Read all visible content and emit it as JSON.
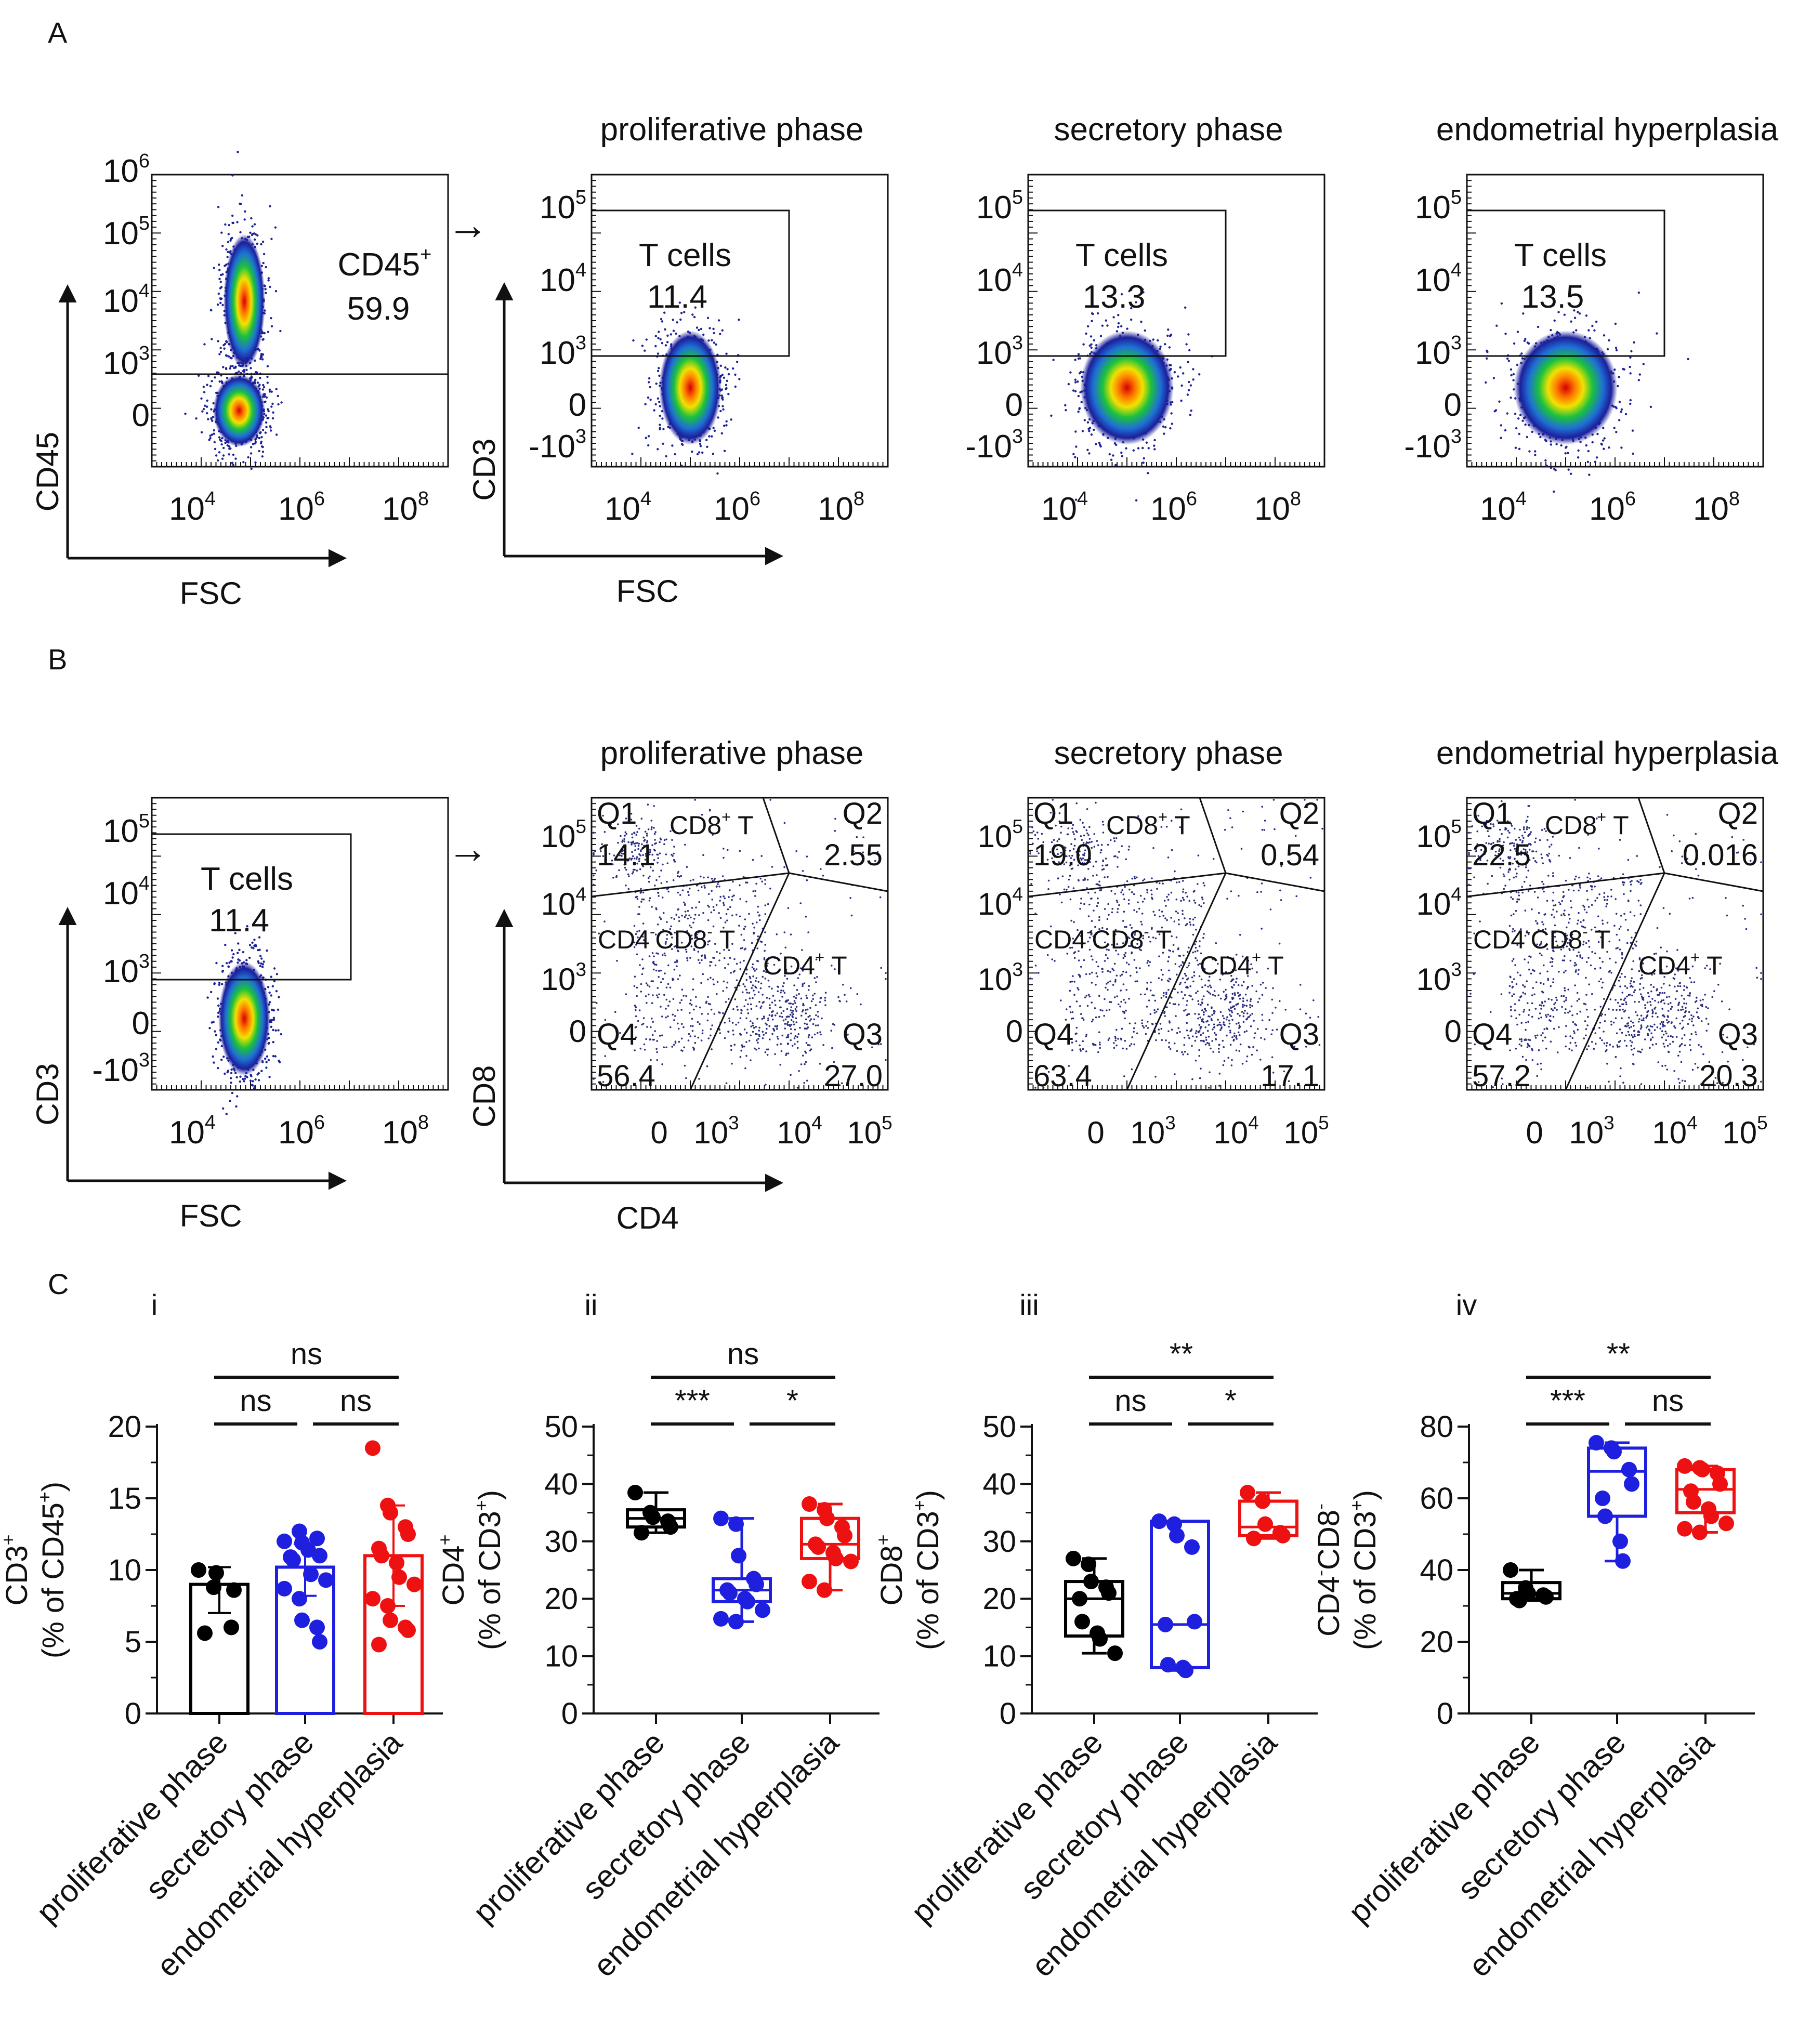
{
  "panels": {
    "a": "A",
    "b": "B",
    "c": "C"
  },
  "phase_titles": [
    "proliferative phase",
    "secretory phase",
    "endometrial hyperplasia"
  ],
  "flow_A": {
    "gate_plot": {
      "xlabel": "FSC",
      "ylabel": "CD45",
      "x_ticks": [
        {
          "base": "10",
          "exp": "4"
        },
        {
          "base": "10",
          "exp": "6"
        },
        {
          "base": "10",
          "exp": "8"
        }
      ],
      "y_ticks": [
        {
          "base": "10",
          "exp": "6"
        },
        {
          "base": "10",
          "exp": "5"
        },
        {
          "base": "10",
          "exp": "4"
        },
        {
          "base": "10",
          "exp": "3"
        },
        {
          "base": "0",
          "exp": ""
        }
      ],
      "gate_label": "CD45",
      "gate_sup": "+",
      "gate_value": "59.9"
    },
    "plots": [
      {
        "gate_label": "T cells",
        "gate_value": "11.4"
      },
      {
        "gate_label": "T cells",
        "gate_value": "13.3"
      },
      {
        "gate_label": "T cells",
        "gate_value": "13.5"
      }
    ],
    "xlabel": "FSC",
    "ylabel": "CD3",
    "x_ticks": [
      {
        "base": "10",
        "exp": "4"
      },
      {
        "base": "10",
        "exp": "6"
      },
      {
        "base": "10",
        "exp": "8"
      }
    ],
    "y_ticks": [
      {
        "base": "10",
        "exp": "5"
      },
      {
        "base": "10",
        "exp": "4"
      },
      {
        "base": "10",
        "exp": "3"
      },
      {
        "base": "0",
        "exp": ""
      },
      {
        "base": "-10",
        "exp": "3"
      }
    ]
  },
  "flow_B": {
    "gate_plot": {
      "xlabel": "FSC",
      "ylabel": "CD3",
      "x_ticks": [
        {
          "base": "10",
          "exp": "4"
        },
        {
          "base": "10",
          "exp": "6"
        },
        {
          "base": "10",
          "exp": "8"
        }
      ],
      "y_ticks": [
        {
          "base": "10",
          "exp": "5"
        },
        {
          "base": "10",
          "exp": "4"
        },
        {
          "base": "10",
          "exp": "3"
        },
        {
          "base": "0",
          "exp": ""
        },
        {
          "base": "-10",
          "exp": "3"
        }
      ],
      "gate_label": "T cells",
      "gate_value": "11.4"
    },
    "xlabel": "CD4",
    "ylabel": "CD8",
    "x_ticks": [
      {
        "base": "0",
        "exp": ""
      },
      {
        "base": "10",
        "exp": "3"
      },
      {
        "base": "10",
        "exp": "4"
      },
      {
        "base": "10",
        "exp": "5"
      }
    ],
    "y_ticks": [
      {
        "base": "10",
        "exp": "5"
      },
      {
        "base": "10",
        "exp": "4"
      },
      {
        "base": "10",
        "exp": "3"
      },
      {
        "base": "0",
        "exp": ""
      }
    ],
    "quadrant_names": [
      "Q1",
      "Q2",
      "Q3",
      "Q4"
    ],
    "pop_cd8": {
      "main": "CD8",
      "sup": "+",
      "tail": " T"
    },
    "pop_cd4": {
      "main": "CD4",
      "sup": "+",
      "tail": " T"
    },
    "pop_dn": {
      "a": "CD4",
      "b": "CD8",
      "tail": " T",
      "sup": "-"
    },
    "plots": [
      {
        "q1": "14.1",
        "q2": "2.55",
        "q3": "27.0",
        "q4": "56.4"
      },
      {
        "q1": "19.0",
        "q2": "0.54",
        "q3": "17.1",
        "q4": "63.4"
      },
      {
        "q1": "22.5",
        "q2": "0.016",
        "q3": "20.3",
        "q4": "57.2"
      }
    ]
  },
  "arrow_glyph": "→",
  "chart_data": [
    {
      "panel": "i",
      "type": "bar",
      "title": "i",
      "categories": [
        "proliferative phase",
        "secretory phase",
        "endometrial hyperplasia"
      ],
      "colors": [
        "#000000",
        "#1f1fe0",
        "#ee1111"
      ],
      "ylabel_main": "CD3",
      "ylabel_sup": "+",
      "ylabel_sub": "(% of CD45",
      "ylabel_sub_sup": "+",
      "ylabel_sub_end": ")",
      "ylim": [
        0,
        20
      ],
      "yticks": [
        0,
        5,
        10,
        15,
        20
      ],
      "values": [
        9.0,
        10.2,
        11.0
      ],
      "error_low": [
        7.0,
        8.2,
        7.5
      ],
      "error_high": [
        10.2,
        11.8,
        14.5
      ],
      "points": [
        [
          10.0,
          8.8,
          9.8,
          6.0,
          8.6,
          5.6
        ],
        [
          12.0,
          12.7,
          11.9,
          12.2,
          11.0,
          10.9,
          10.7,
          11.4,
          9.7,
          9.3,
          8.7,
          8.0,
          6.5,
          6.0,
          5.0
        ],
        [
          18.5,
          14.5,
          14.0,
          13.0,
          12.5,
          11.5,
          11.0,
          10.5,
          9.5,
          9.0,
          8.0,
          7.5,
          6.5,
          6.0,
          5.8,
          4.8
        ]
      ],
      "significance": [
        {
          "from": 0,
          "to": 2,
          "label": "ns"
        },
        {
          "from": 0,
          "to": 1,
          "label": "ns"
        },
        {
          "from": 1,
          "to": 2,
          "label": "ns"
        }
      ]
    },
    {
      "panel": "ii",
      "type": "box",
      "title": "ii",
      "categories": [
        "proliferative phase",
        "secretory phase",
        "endometrial hyperplasia"
      ],
      "colors": [
        "#000000",
        "#1f1fe0",
        "#ee1111"
      ],
      "ylabel_main": "CD4",
      "ylabel_sup": "+",
      "ylabel_sub": "(% of CD3",
      "ylabel_sub_sup": "+",
      "ylabel_sub_end": ")",
      "ylim": [
        0,
        50
      ],
      "yticks": [
        0,
        10,
        20,
        30,
        40,
        50
      ],
      "boxes": [
        {
          "min": 31.5,
          "q1": 32.5,
          "median": 34.0,
          "q3": 35.5,
          "max": 38.5
        },
        {
          "min": 16.0,
          "q1": 19.5,
          "median": 21.5,
          "q3": 23.5,
          "max": 34.0
        },
        {
          "min": 21.5,
          "q1": 27.0,
          "median": 29.5,
          "q3": 34.0,
          "max": 36.5
        }
      ],
      "points": [
        [
          38.5,
          35.0,
          34.2,
          33.5,
          32.5,
          31.5
        ],
        [
          34.0,
          33.0,
          27.5,
          23.5,
          22.5,
          21.5,
          21.0,
          20.0,
          19.5,
          18.0,
          16.5,
          16.0
        ],
        [
          36.5,
          35.5,
          34.0,
          32.5,
          31.0,
          29.5,
          29.0,
          28.0,
          27.0,
          26.5,
          23.0,
          21.5
        ]
      ],
      "significance": [
        {
          "from": 0,
          "to": 2,
          "label": "ns"
        },
        {
          "from": 0,
          "to": 1,
          "label": "***"
        },
        {
          "from": 1,
          "to": 2,
          "label": "*"
        }
      ]
    },
    {
      "panel": "iii",
      "type": "box",
      "title": "iii",
      "categories": [
        "proliferative phase",
        "secretory phase",
        "endometrial hyperplasia"
      ],
      "colors": [
        "#000000",
        "#1f1fe0",
        "#ee1111"
      ],
      "ylabel_main": "CD8",
      "ylabel_sup": "+",
      "ylabel_sub": "(% of CD3",
      "ylabel_sub_sup": "+",
      "ylabel_sub_end": ")",
      "ylim": [
        0,
        50
      ],
      "yticks": [
        0,
        10,
        20,
        30,
        40,
        50
      ],
      "boxes": [
        {
          "min": 10.5,
          "q1": 13.5,
          "median": 20.0,
          "q3": 23.0,
          "max": 27.0
        },
        {
          "min": 7.5,
          "q1": 8.0,
          "median": 15.5,
          "q3": 33.5,
          "max": 33.5
        },
        {
          "min": 30.5,
          "q1": 31.0,
          "median": 32.5,
          "q3": 37.0,
          "max": 38.5
        }
      ],
      "points": [
        [
          27.0,
          26.0,
          23.0,
          22.0,
          21.0,
          20.0,
          16.0,
          14.0,
          13.0,
          10.5
        ],
        [
          33.5,
          33.0,
          31.0,
          29.0,
          16.0,
          15.5,
          8.5,
          8.0,
          7.5
        ],
        [
          38.5,
          37.0,
          33.0,
          31.5,
          31.0,
          30.5
        ]
      ],
      "significance": [
        {
          "from": 0,
          "to": 2,
          "label": "**"
        },
        {
          "from": 0,
          "to": 1,
          "label": "ns"
        },
        {
          "from": 1,
          "to": 2,
          "label": "*"
        }
      ]
    },
    {
      "panel": "iv",
      "type": "box",
      "title": "iv",
      "categories": [
        "proliferative phase",
        "secretory phase",
        "endometrial hyperplasia"
      ],
      "colors": [
        "#000000",
        "#1f1fe0",
        "#ee1111"
      ],
      "ylabel_main": "CD4",
      "ylabel_main_sup": "-",
      "ylabel_main2": "CD8",
      "ylabel_sup": "-",
      "ylabel_sub": "(% of CD3",
      "ylabel_sub_sup": "+",
      "ylabel_sub_end": ")",
      "ylim": [
        0,
        80
      ],
      "yticks": [
        0,
        20,
        40,
        60,
        80
      ],
      "boxes": [
        {
          "min": 31.5,
          "q1": 32.0,
          "median": 33.5,
          "q3": 36.5,
          "max": 40.0
        },
        {
          "min": 42.5,
          "q1": 55.0,
          "median": 67.5,
          "q3": 74.0,
          "max": 75.5
        },
        {
          "min": 50.5,
          "q1": 56.0,
          "median": 62.5,
          "q3": 68.0,
          "max": 69.0
        }
      ],
      "points": [
        [
          40.0,
          35.0,
          33.5,
          33.0,
          32.5,
          32.0,
          31.5
        ],
        [
          75.5,
          74.0,
          73.0,
          68.0,
          64.0,
          60.0,
          55.0,
          48.0,
          42.5
        ],
        [
          69.0,
          68.5,
          68.0,
          67.0,
          64.0,
          62.0,
          59.0,
          57.0,
          55.0,
          53.0,
          51.5,
          50.5
        ]
      ],
      "significance": [
        {
          "from": 0,
          "to": 2,
          "label": "**"
        },
        {
          "from": 0,
          "to": 1,
          "label": "***"
        },
        {
          "from": 1,
          "to": 2,
          "label": "ns"
        }
      ]
    }
  ]
}
